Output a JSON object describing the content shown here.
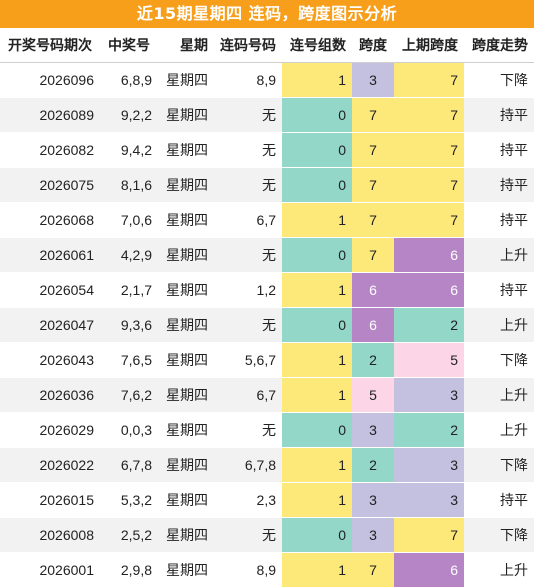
{
  "title": "近15期星期四 连码，跨度图示分析",
  "headers": [
    "开奖号码期次",
    "中奖号",
    "星期",
    "连码号码",
    "连号组数",
    "跨度",
    "上期跨度",
    "跨度走势"
  ],
  "colors": {
    "banner": "#f79e1b",
    "yellow": "#fde87a",
    "teal": "#92d7c8",
    "lavender": "#c3c0e0",
    "purple": "#b585c6",
    "pink": "#fcd5e6"
  },
  "rows": [
    {
      "period": "2026096",
      "nums": "6,8,9",
      "weekday": "星期四",
      "consec": "8,9",
      "groups": "1",
      "span": "3",
      "prev_span": "7",
      "trend": "下降"
    },
    {
      "period": "2026089",
      "nums": "9,2,2",
      "weekday": "星期四",
      "consec": "无",
      "groups": "0",
      "span": "7",
      "prev_span": "7",
      "trend": "持平"
    },
    {
      "period": "2026082",
      "nums": "9,4,2",
      "weekday": "星期四",
      "consec": "无",
      "groups": "0",
      "span": "7",
      "prev_span": "7",
      "trend": "持平"
    },
    {
      "period": "2026075",
      "nums": "8,1,6",
      "weekday": "星期四",
      "consec": "无",
      "groups": "0",
      "span": "7",
      "prev_span": "7",
      "trend": "持平"
    },
    {
      "period": "2026068",
      "nums": "7,0,6",
      "weekday": "星期四",
      "consec": "6,7",
      "groups": "1",
      "span": "7",
      "prev_span": "7",
      "trend": "持平"
    },
    {
      "period": "2026061",
      "nums": "4,2,9",
      "weekday": "星期四",
      "consec": "无",
      "groups": "0",
      "span": "7",
      "prev_span": "6",
      "trend": "上升"
    },
    {
      "period": "2026054",
      "nums": "2,1,7",
      "weekday": "星期四",
      "consec": "1,2",
      "groups": "1",
      "span": "6",
      "prev_span": "6",
      "trend": "持平"
    },
    {
      "period": "2026047",
      "nums": "9,3,6",
      "weekday": "星期四",
      "consec": "无",
      "groups": "0",
      "span": "6",
      "prev_span": "2",
      "trend": "上升"
    },
    {
      "period": "2026043",
      "nums": "7,6,5",
      "weekday": "星期四",
      "consec": "5,6,7",
      "groups": "1",
      "span": "2",
      "prev_span": "5",
      "trend": "下降"
    },
    {
      "period": "2026036",
      "nums": "7,6,2",
      "weekday": "星期四",
      "consec": "6,7",
      "groups": "1",
      "span": "5",
      "prev_span": "3",
      "trend": "上升"
    },
    {
      "period": "2026029",
      "nums": "0,0,3",
      "weekday": "星期四",
      "consec": "无",
      "groups": "0",
      "span": "3",
      "prev_span": "2",
      "trend": "上升"
    },
    {
      "period": "2026022",
      "nums": "6,7,8",
      "weekday": "星期四",
      "consec": "6,7,8",
      "groups": "1",
      "span": "2",
      "prev_span": "3",
      "trend": "下降"
    },
    {
      "period": "2026015",
      "nums": "5,3,2",
      "weekday": "星期四",
      "consec": "2,3",
      "groups": "1",
      "span": "3",
      "prev_span": "3",
      "trend": "持平"
    },
    {
      "period": "2026008",
      "nums": "2,5,2",
      "weekday": "星期四",
      "consec": "无",
      "groups": "0",
      "span": "3",
      "prev_span": "7",
      "trend": "下降"
    },
    {
      "period": "2026001",
      "nums": "2,9,8",
      "weekday": "星期四",
      "consec": "8,9",
      "groups": "1",
      "span": "7",
      "prev_span": "6",
      "trend": "上升"
    }
  ]
}
